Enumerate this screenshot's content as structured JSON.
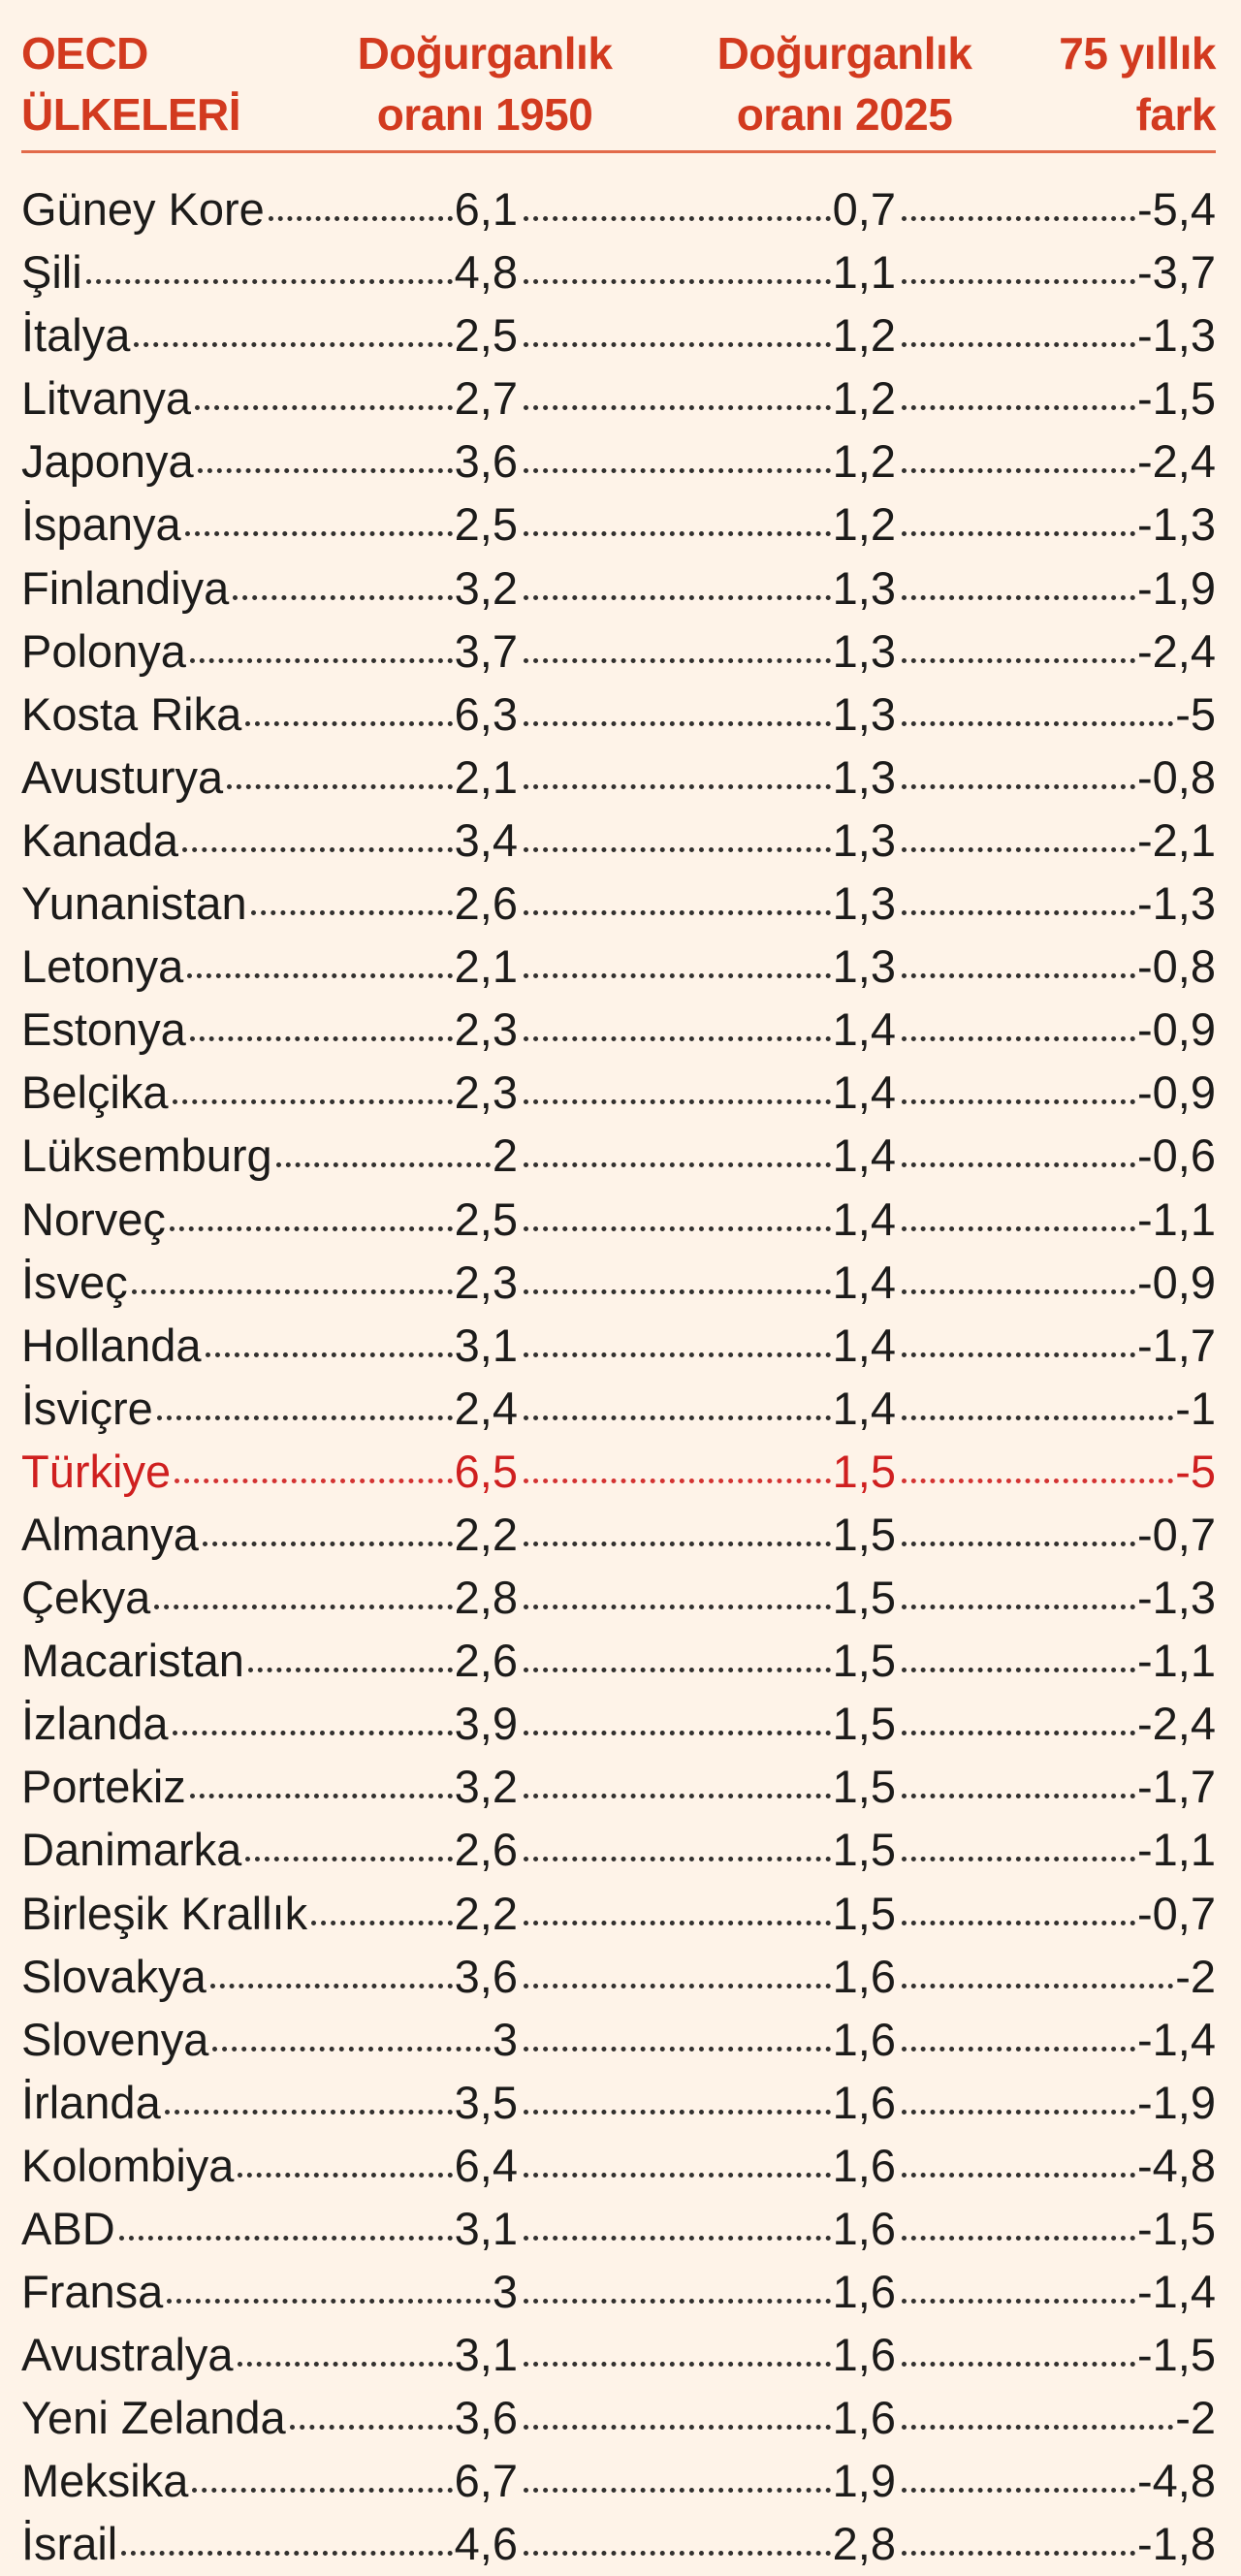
{
  "header": {
    "country_line1": "OECD",
    "country_line2": "ÜLKELERİ",
    "rate1950_line1": "Doğurganlık",
    "rate1950_line2": "oranı 1950",
    "rate2025_line1": "Doğurganlık",
    "rate2025_line2": "oranı 2025",
    "diff_line1": "75 yıllık",
    "diff_line2": "fark"
  },
  "colors": {
    "background": "#fef3e8",
    "header_text": "#d23a1f",
    "rule": "#e26a4a",
    "highlight_row": "#cf1f1f",
    "body_text": "#1c1b1a"
  },
  "rows": [
    {
      "country": "Güney Kore",
      "r1950": "6,1",
      "r2025": "0,7",
      "diff": "-5,4"
    },
    {
      "country": "Şili",
      "r1950": "4,8",
      "r2025": "1,1",
      "diff": "-3,7"
    },
    {
      "country": "İtalya",
      "r1950": "2,5",
      "r2025": "1,2",
      "diff": "-1,3"
    },
    {
      "country": "Litvanya",
      "r1950": "2,7",
      "r2025": "1,2",
      "diff": "-1,5"
    },
    {
      "country": "Japonya",
      "r1950": "3,6",
      "r2025": "1,2",
      "diff": "-2,4"
    },
    {
      "country": "İspanya",
      "r1950": "2,5",
      "r2025": "1,2",
      "diff": "-1,3"
    },
    {
      "country": "Finlandiya",
      "r1950": "3,2",
      "r2025": "1,3",
      "diff": "-1,9"
    },
    {
      "country": "Polonya",
      "r1950": "3,7",
      "r2025": "1,3",
      "diff": "-2,4"
    },
    {
      "country": "Kosta Rika",
      "r1950": "6,3",
      "r2025": "1,3",
      "diff": "-5"
    },
    {
      "country": "Avusturya",
      "r1950": "2,1",
      "r2025": "1,3",
      "diff": "-0,8"
    },
    {
      "country": "Kanada",
      "r1950": "3,4",
      "r2025": "1,3",
      "diff": "-2,1"
    },
    {
      "country": "Yunanistan",
      "r1950": "2,6",
      "r2025": "1,3",
      "diff": "-1,3"
    },
    {
      "country": "Letonya",
      "r1950": "2,1",
      "r2025": "1,3",
      "diff": "-0,8"
    },
    {
      "country": "Estonya",
      "r1950": "2,3",
      "r2025": "1,4",
      "diff": "-0,9"
    },
    {
      "country": "Belçika",
      "r1950": "2,3",
      "r2025": "1,4",
      "diff": "-0,9"
    },
    {
      "country": "Lüksemburg",
      "r1950": "2",
      "r2025": "1,4",
      "diff": "-0,6"
    },
    {
      "country": "Norveç",
      "r1950": "2,5",
      "r2025": "1,4",
      "diff": "-1,1"
    },
    {
      "country": "İsveç",
      "r1950": "2,3",
      "r2025": "1,4",
      "diff": "-0,9"
    },
    {
      "country": "Hollanda",
      "r1950": "3,1",
      "r2025": "1,4",
      "diff": "-1,7"
    },
    {
      "country": "İsviçre",
      "r1950": "2,4",
      "r2025": "1,4",
      "diff": "-1"
    },
    {
      "country": "Türkiye",
      "r1950": "6,5",
      "r2025": "1,5",
      "diff": "-5",
      "highlight": true
    },
    {
      "country": "Almanya",
      "r1950": "2,2",
      "r2025": "1,5",
      "diff": "-0,7"
    },
    {
      "country": "Çekya",
      "r1950": "2,8",
      "r2025": "1,5",
      "diff": "-1,3"
    },
    {
      "country": "Macaristan",
      "r1950": "2,6",
      "r2025": "1,5",
      "diff": "-1,1"
    },
    {
      "country": "İzlanda",
      "r1950": "3,9",
      "r2025": "1,5",
      "diff": "-2,4"
    },
    {
      "country": "Portekiz",
      "r1950": "3,2",
      "r2025": "1,5",
      "diff": "-1,7"
    },
    {
      "country": "Danimarka",
      "r1950": "2,6",
      "r2025": "1,5",
      "diff": "-1,1"
    },
    {
      "country": "Birleşik Krallık",
      "r1950": "2,2",
      "r2025": "1,5",
      "diff": "-0,7"
    },
    {
      "country": "Slovakya",
      "r1950": "3,6",
      "r2025": "1,6",
      "diff": "-2"
    },
    {
      "country": "Slovenya",
      "r1950": "3",
      "r2025": "1,6",
      "diff": "-1,4"
    },
    {
      "country": "İrlanda",
      "r1950": "3,5",
      "r2025": "1,6",
      "diff": "-1,9"
    },
    {
      "country": "Kolombiya",
      "r1950": "6,4",
      "r2025": "1,6",
      "diff": "-4,8"
    },
    {
      "country": "ABD",
      "r1950": "3,1",
      "r2025": "1,6",
      "diff": "-1,5"
    },
    {
      "country": "Fransa",
      "r1950": "3",
      "r2025": "1,6",
      "diff": "-1,4"
    },
    {
      "country": "Avustralya",
      "r1950": "3,1",
      "r2025": "1,6",
      "diff": "-1,5"
    },
    {
      "country": "Yeni Zelanda",
      "r1950": "3,6",
      "r2025": "1,6",
      "diff": "-2"
    },
    {
      "country": "Meksika",
      "r1950": "6,7",
      "r2025": "1,9",
      "diff": "-4,8"
    },
    {
      "country": "İsrail",
      "r1950": "4,6",
      "r2025": "2,8",
      "diff": "-1,8"
    }
  ]
}
